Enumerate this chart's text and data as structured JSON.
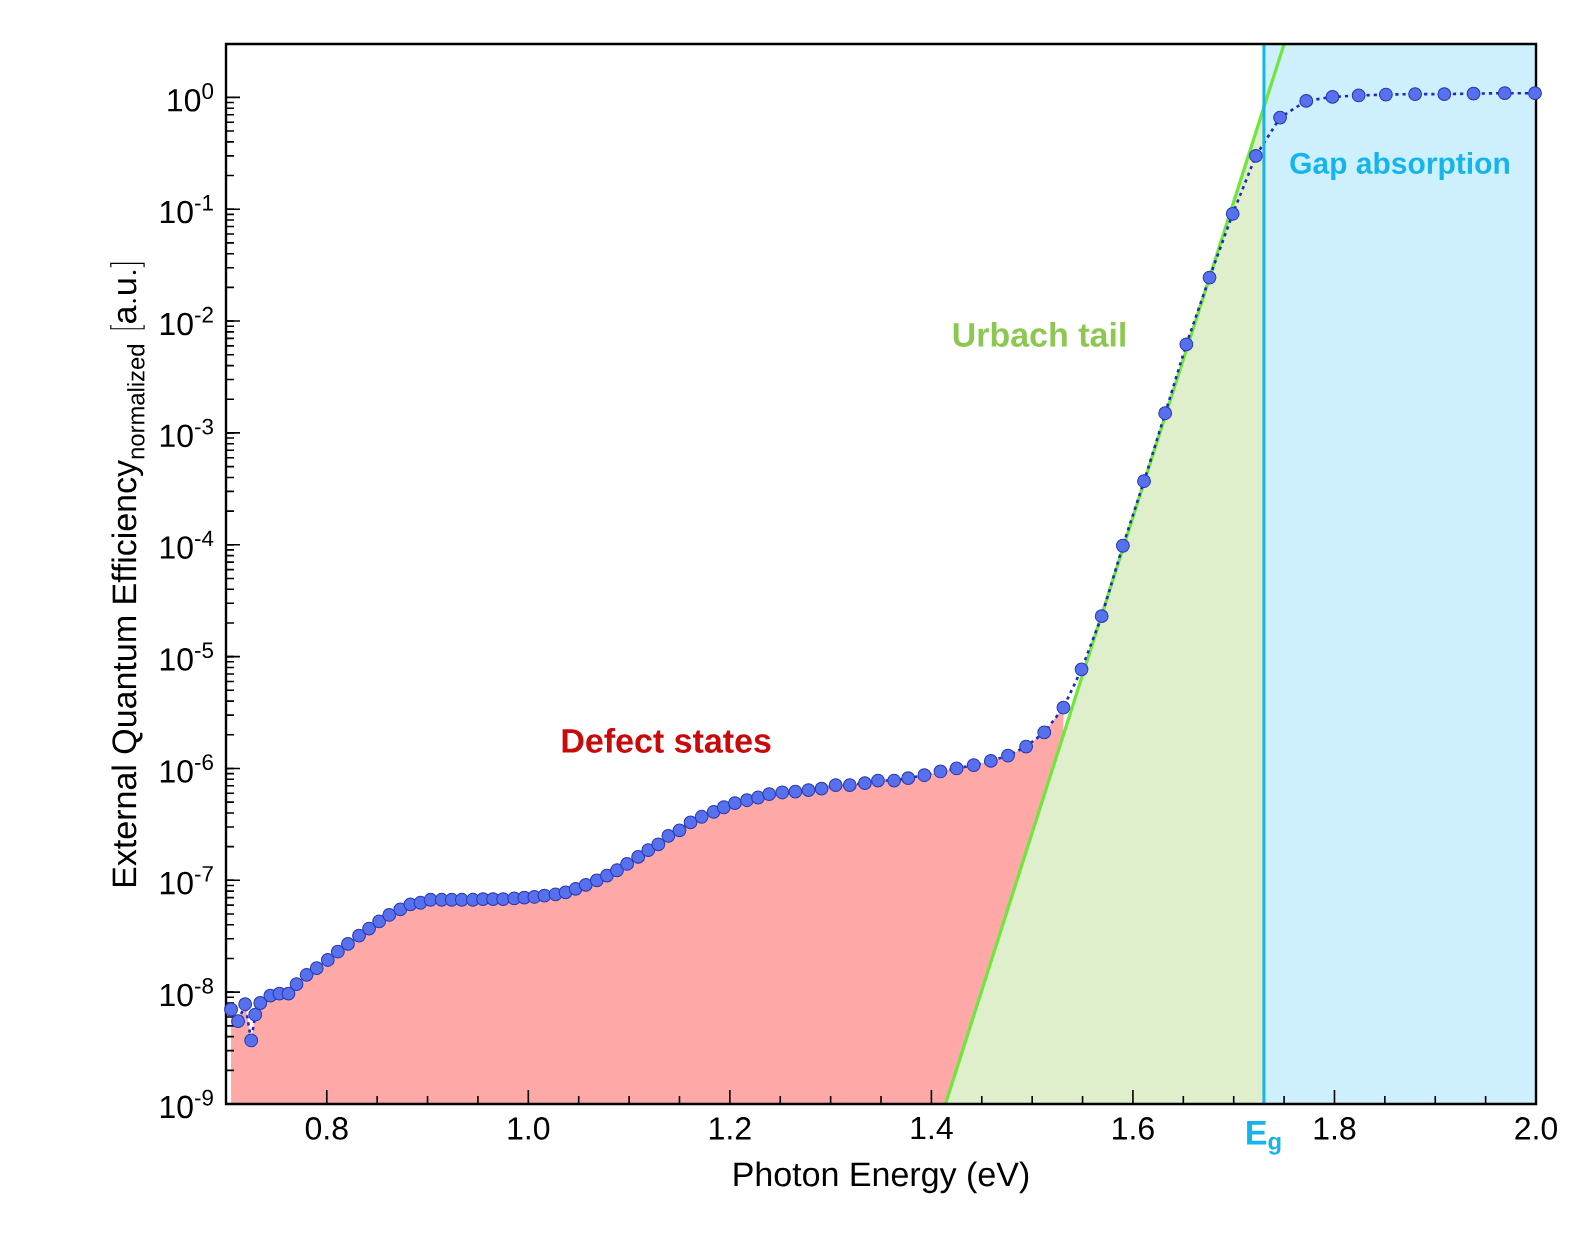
{
  "chart_data": {
    "type": "line",
    "xlabel": "Photon Energy (eV)",
    "ylabel": "\\mathrm{External\\ Quantum\\ Efficiency}_{\\mathrm{normalized}}\\ \\mathrm{[a.u.]}",
    "log": "y",
    "xlim": [
      0.7,
      2.0
    ],
    "ylim": [
      1e-09,
      3
    ],
    "xticks": [
      0.8,
      {
        "value": 1.0,
        "label": "1.0"
      },
      1.2,
      1.4,
      1.6,
      1.8,
      {
        "value": 2.0,
        "label": "2.0"
      }
    ],
    "yticks": [
      {
        "value": 1e-09,
        "label": "10$^{-9}$"
      },
      {
        "value": 1e-08,
        "label": "10$^{-8}$"
      },
      {
        "value": 1e-07,
        "label": "10$^{-7}$"
      },
      {
        "value": 1e-06,
        "label": "10$^{-6}$"
      },
      {
        "value": 1e-05,
        "label": "10$^{-5}$"
      },
      {
        "value": 0.0001,
        "label": "10$^{-4}$"
      },
      {
        "value": 0.001,
        "label": "10$^{-3}$"
      },
      {
        "value": 0.01,
        "label": "10$^{-2}$"
      },
      {
        "value": 0.1,
        "label": "10$^{-1}$"
      },
      {
        "value": 1,
        "label": "10$^{0}$"
      }
    ],
    "bands": [
      {
        "axis": "x",
        "from": 1.73,
        "to": 2.0,
        "label": "Gap absorption",
        "color": "#cdf0fc"
      }
    ],
    "ref_lines": [
      {
        "axis": "x",
        "value": 1.73,
        "label": "\\mathbf{E}_{\\mathbf{g}}",
        "color": "#14b4ec"
      }
    ],
    "annotations": [
      "Defect states",
      "Urbach tail"
    ],
    "series": [
      {
        "type": "area",
        "color": "#fea8a8",
        "x": [
          0.705,
          0.712,
          0.719,
          0.725,
          0.729,
          0.734,
          0.744,
          0.753,
          0.762,
          0.77,
          0.78,
          0.79,
          0.801,
          0.811,
          0.821,
          0.832,
          0.842,
          0.852,
          0.862,
          0.873,
          0.883,
          0.893,
          0.903,
          0.914,
          0.924,
          0.934,
          0.945,
          0.955,
          0.965,
          0.975,
          0.986,
          0.996,
          1.006,
          1.016,
          1.027,
          1.037,
          1.047,
          1.057,
          1.068,
          1.078,
          1.088,
          1.098,
          1.109,
          1.119,
          1.129,
          1.139,
          1.15,
          1.161,
          1.172,
          1.184,
          1.194,
          1.205,
          1.217,
          1.228,
          1.239,
          1.252,
          1.265,
          1.278,
          1.291,
          1.305,
          1.319,
          1.334,
          1.347,
          1.363,
          1.377,
          1.393,
          1.409,
          1.425,
          1.442,
          1.459,
          1.476,
          1.494,
          1.512,
          1.531
        ],
        "values": [
          7e-09,
          5.5e-09,
          7.8e-09,
          3.7e-09,
          6.3e-09,
          8e-09,
          9.3e-09,
          9.7e-09,
          9.7e-09,
          1.18e-08,
          1.43e-08,
          1.64e-08,
          1.94e-08,
          2.3e-08,
          2.7e-08,
          3.2e-08,
          3.7e-08,
          4.3e-08,
          4.9e-08,
          5.5e-08,
          6.1e-08,
          6.3e-08,
          6.7e-08,
          6.7e-08,
          6.7e-08,
          6.7e-08,
          6.7e-08,
          6.8e-08,
          6.8e-08,
          6.8e-08,
          6.9e-08,
          7e-08,
          7.1e-08,
          7.3e-08,
          7.5e-08,
          7.8e-08,
          8.4e-08,
          9.1e-08,
          1e-07,
          1.1e-07,
          1.23e-07,
          1.4e-07,
          1.62e-07,
          1.86e-07,
          2.1e-07,
          2.5e-07,
          2.8e-07,
          3.3e-07,
          3.7e-07,
          4.1e-07,
          4.5e-07,
          4.9e-07,
          5.2e-07,
          5.5e-07,
          5.9e-07,
          6.1e-07,
          6.2e-07,
          6.4e-07,
          6.6e-07,
          7.1e-07,
          7.1e-07,
          7.4e-07,
          7.8e-07,
          7.8e-07,
          8.2e-07,
          8.7e-07,
          9.4e-07,
          1e-06,
          1.07e-06,
          1.17e-06,
          1.3e-06,
          1.57e-06,
          2.1e-06,
          3.5e-06
        ]
      },
      {
        "type": "area",
        "color": "#dfefcb",
        "x": [
          1.414,
          1.73
        ],
        "values": [
          1e-09,
          0.82
        ]
      },
      {
        "color": "#6ee63a",
        "x": [
          1.414,
          1.75
        ],
        "values": [
          1e-09,
          3
        ]
      },
      {
        "color": "#5670ee",
        "marker": "circle",
        "line_style": "dotted",
        "x": [
          0.705,
          0.712,
          0.719,
          0.725,
          0.729,
          0.734,
          0.744,
          0.753,
          0.762,
          0.77,
          0.78,
          0.79,
          0.801,
          0.811,
          0.821,
          0.832,
          0.842,
          0.852,
          0.862,
          0.873,
          0.883,
          0.893,
          0.903,
          0.914,
          0.924,
          0.934,
          0.945,
          0.955,
          0.965,
          0.975,
          0.986,
          0.996,
          1.006,
          1.016,
          1.027,
          1.037,
          1.047,
          1.057,
          1.068,
          1.078,
          1.088,
          1.098,
          1.109,
          1.119,
          1.129,
          1.139,
          1.15,
          1.161,
          1.172,
          1.184,
          1.194,
          1.205,
          1.217,
          1.228,
          1.239,
          1.252,
          1.265,
          1.278,
          1.291,
          1.305,
          1.319,
          1.334,
          1.347,
          1.363,
          1.377,
          1.393,
          1.409,
          1.425,
          1.442,
          1.459,
          1.476,
          1.494,
          1.512,
          1.531,
          1.549,
          1.569,
          1.59,
          1.611,
          1.632,
          1.653,
          1.676,
          1.699,
          1.722,
          1.746,
          1.772,
          1.798,
          1.824,
          1.851,
          1.88,
          1.909,
          1.938,
          1.969,
          1.999
        ],
        "values": [
          7e-09,
          5.5e-09,
          7.8e-09,
          3.7e-09,
          6.3e-09,
          8e-09,
          9.3e-09,
          9.7e-09,
          9.7e-09,
          1.18e-08,
          1.43e-08,
          1.64e-08,
          1.94e-08,
          2.3e-08,
          2.7e-08,
          3.2e-08,
          3.7e-08,
          4.3e-08,
          4.9e-08,
          5.5e-08,
          6.1e-08,
          6.3e-08,
          6.7e-08,
          6.7e-08,
          6.7e-08,
          6.7e-08,
          6.7e-08,
          6.8e-08,
          6.8e-08,
          6.8e-08,
          6.9e-08,
          7e-08,
          7.1e-08,
          7.3e-08,
          7.5e-08,
          7.8e-08,
          8.4e-08,
          9.1e-08,
          1e-07,
          1.1e-07,
          1.23e-07,
          1.4e-07,
          1.62e-07,
          1.86e-07,
          2.1e-07,
          2.5e-07,
          2.8e-07,
          3.3e-07,
          3.7e-07,
          4.1e-07,
          4.5e-07,
          4.9e-07,
          5.2e-07,
          5.5e-07,
          5.9e-07,
          6.1e-07,
          6.2e-07,
          6.4e-07,
          6.6e-07,
          7.1e-07,
          7.1e-07,
          7.4e-07,
          7.8e-07,
          7.8e-07,
          8.2e-07,
          8.7e-07,
          9.4e-07,
          1e-06,
          1.07e-06,
          1.17e-06,
          1.3e-06,
          1.57e-06,
          2.1e-06,
          3.5e-06,
          7.7e-06,
          2.3e-05,
          9.8e-05,
          0.00037,
          0.0015,
          0.0062,
          0.0245,
          0.091,
          0.3,
          0.66,
          0.93,
          1.01,
          1.04,
          1.06,
          1.07,
          1.07,
          1.08,
          1.09,
          1.09
        ]
      }
    ]
  }
}
